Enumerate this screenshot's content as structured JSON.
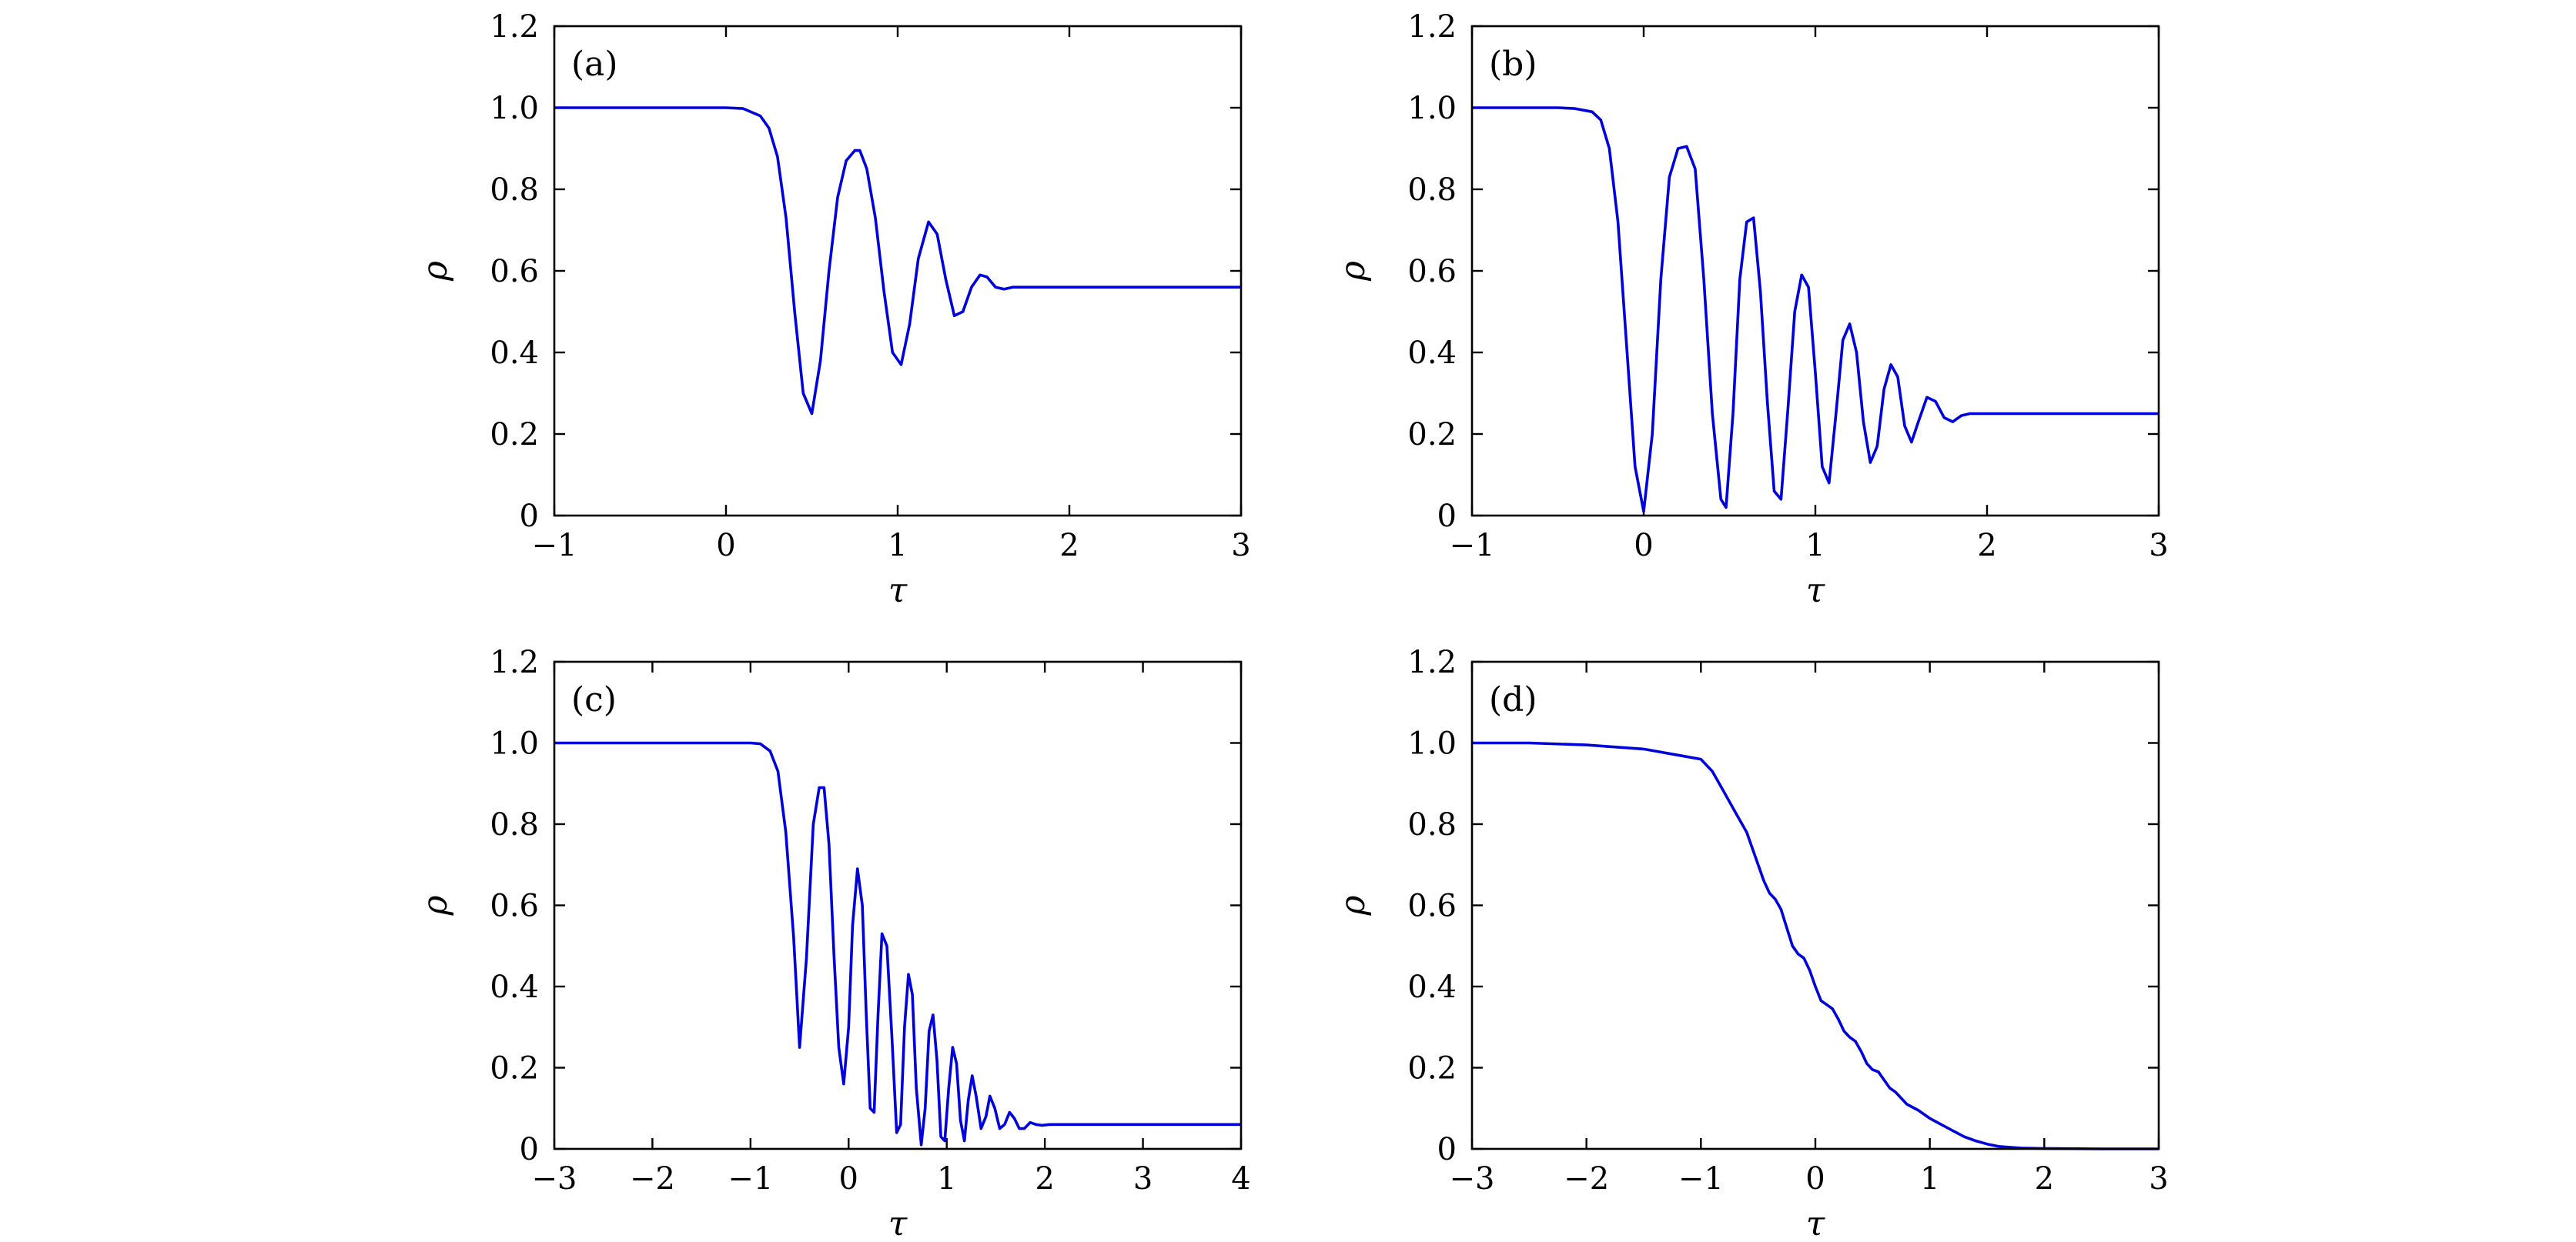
{
  "chart_data": [
    {
      "type": "line",
      "panel_label": "(a)",
      "xlabel": "τ",
      "ylabel": "ρ",
      "xlim": [
        -1,
        3
      ],
      "ylim": [
        0,
        1.2
      ],
      "xticks": [
        -1,
        0,
        1,
        2,
        3
      ],
      "yticks": [
        0,
        0.2,
        0.4,
        0.6,
        0.8,
        1.0,
        1.2
      ],
      "xtick_labels": [
        "−1",
        "0",
        "1",
        "2",
        "3"
      ],
      "ytick_labels": [
        "0",
        "0.2",
        "0.4",
        "0.6",
        "0.8",
        "1.0",
        "1.2"
      ],
      "color": "#0000dd",
      "series": [
        {
          "x": [
            -1.0,
            0.0,
            0.1,
            0.2,
            0.25,
            0.3,
            0.35,
            0.4,
            0.45,
            0.5,
            0.55,
            0.6,
            0.65,
            0.7,
            0.75,
            0.78,
            0.82,
            0.87,
            0.92,
            0.97,
            1.02,
            1.07,
            1.12,
            1.18,
            1.23,
            1.28,
            1.33,
            1.38,
            1.43,
            1.48,
            1.52,
            1.57,
            1.62,
            1.67,
            1.72,
            2.0,
            3.0
          ],
          "y": [
            1.0,
            1.0,
            0.998,
            0.98,
            0.95,
            0.88,
            0.73,
            0.5,
            0.3,
            0.25,
            0.38,
            0.6,
            0.78,
            0.87,
            0.895,
            0.895,
            0.85,
            0.73,
            0.55,
            0.4,
            0.37,
            0.47,
            0.63,
            0.72,
            0.69,
            0.58,
            0.49,
            0.5,
            0.56,
            0.59,
            0.585,
            0.56,
            0.555,
            0.56,
            0.56,
            0.56,
            0.56
          ]
        }
      ]
    },
    {
      "type": "line",
      "panel_label": "(b)",
      "xlabel": "τ",
      "ylabel": "ρ",
      "xlim": [
        -1,
        3
      ],
      "ylim": [
        0,
        1.2
      ],
      "xticks": [
        -1,
        0,
        1,
        2,
        3
      ],
      "yticks": [
        0,
        0.2,
        0.4,
        0.6,
        0.8,
        1.0,
        1.2
      ],
      "xtick_labels": [
        "−1",
        "0",
        "1",
        "2",
        "3"
      ],
      "ytick_labels": [
        "0",
        "0.2",
        "0.4",
        "0.6",
        "0.8",
        "1.0",
        "1.2"
      ],
      "color": "#0000dd",
      "series": [
        {
          "x": [
            -1.0,
            -0.5,
            -0.4,
            -0.3,
            -0.25,
            -0.2,
            -0.15,
            -0.1,
            -0.05,
            0.0,
            0.05,
            0.1,
            0.15,
            0.2,
            0.25,
            0.3,
            0.35,
            0.4,
            0.45,
            0.48,
            0.52,
            0.56,
            0.6,
            0.64,
            0.68,
            0.72,
            0.76,
            0.8,
            0.84,
            0.88,
            0.92,
            0.96,
            1.0,
            1.04,
            1.08,
            1.12,
            1.16,
            1.2,
            1.24,
            1.28,
            1.32,
            1.36,
            1.4,
            1.44,
            1.48,
            1.52,
            1.56,
            1.6,
            1.65,
            1.7,
            1.75,
            1.8,
            1.85,
            1.9,
            2.0,
            3.0
          ],
          "y": [
            1.0,
            1.0,
            0.998,
            0.99,
            0.97,
            0.9,
            0.72,
            0.42,
            0.12,
            0.01,
            0.2,
            0.58,
            0.83,
            0.9,
            0.905,
            0.85,
            0.58,
            0.25,
            0.04,
            0.02,
            0.25,
            0.58,
            0.72,
            0.73,
            0.55,
            0.28,
            0.06,
            0.04,
            0.26,
            0.5,
            0.59,
            0.56,
            0.35,
            0.12,
            0.08,
            0.25,
            0.43,
            0.47,
            0.4,
            0.23,
            0.13,
            0.17,
            0.31,
            0.37,
            0.34,
            0.22,
            0.18,
            0.23,
            0.29,
            0.28,
            0.24,
            0.23,
            0.245,
            0.25,
            0.25,
            0.25
          ]
        }
      ]
    },
    {
      "type": "line",
      "panel_label": "(c)",
      "xlabel": "τ",
      "ylabel": "ρ",
      "xlim": [
        -3,
        4
      ],
      "ylim": [
        0,
        1.2
      ],
      "xticks": [
        -3,
        -2,
        -1,
        0,
        1,
        2,
        3,
        4
      ],
      "yticks": [
        0,
        0.2,
        0.4,
        0.6,
        0.8,
        1.0,
        1.2
      ],
      "xtick_labels": [
        "−3",
        "−2",
        "−1",
        "0",
        "1",
        "2",
        "3",
        "4"
      ],
      "ytick_labels": [
        "0",
        "0.2",
        "0.4",
        "0.6",
        "0.8",
        "1.0",
        "1.2"
      ],
      "color": "#0000dd",
      "series": [
        {
          "x": [
            -3.0,
            -1.0,
            -0.9,
            -0.8,
            -0.72,
            -0.64,
            -0.56,
            -0.5,
            -0.43,
            -0.36,
            -0.3,
            -0.25,
            -0.2,
            -0.15,
            -0.1,
            -0.05,
            0.0,
            0.04,
            0.09,
            0.14,
            0.18,
            0.22,
            0.26,
            0.3,
            0.34,
            0.39,
            0.44,
            0.49,
            0.53,
            0.57,
            0.61,
            0.65,
            0.69,
            0.74,
            0.78,
            0.82,
            0.86,
            0.9,
            0.94,
            0.98,
            1.02,
            1.06,
            1.1,
            1.14,
            1.18,
            1.22,
            1.26,
            1.3,
            1.35,
            1.4,
            1.44,
            1.49,
            1.54,
            1.59,
            1.64,
            1.69,
            1.74,
            1.79,
            1.85,
            1.91,
            1.97,
            2.05,
            4.0
          ],
          "y": [
            1.0,
            1.0,
            0.998,
            0.98,
            0.93,
            0.78,
            0.52,
            0.25,
            0.47,
            0.8,
            0.89,
            0.89,
            0.75,
            0.48,
            0.25,
            0.16,
            0.3,
            0.55,
            0.69,
            0.6,
            0.33,
            0.1,
            0.09,
            0.33,
            0.53,
            0.5,
            0.28,
            0.04,
            0.06,
            0.3,
            0.43,
            0.38,
            0.15,
            0.01,
            0.1,
            0.29,
            0.33,
            0.22,
            0.03,
            0.02,
            0.15,
            0.25,
            0.21,
            0.07,
            0.02,
            0.12,
            0.18,
            0.13,
            0.05,
            0.08,
            0.13,
            0.1,
            0.05,
            0.06,
            0.09,
            0.075,
            0.05,
            0.05,
            0.065,
            0.06,
            0.058,
            0.06,
            0.06
          ]
        }
      ]
    },
    {
      "type": "line",
      "panel_label": "(d)",
      "xlabel": "τ",
      "ylabel": "ρ",
      "xlim": [
        -3,
        3
      ],
      "ylim": [
        0,
        1.2
      ],
      "xticks": [
        -3,
        -2,
        -1,
        0,
        1,
        2,
        3
      ],
      "yticks": [
        0,
        0.2,
        0.4,
        0.6,
        0.8,
        1.0,
        1.2
      ],
      "xtick_labels": [
        "−3",
        "−2",
        "−1",
        "0",
        "1",
        "2",
        "3"
      ],
      "ytick_labels": [
        "0",
        "0.2",
        "0.4",
        "0.6",
        "0.8",
        "1.0",
        "1.2"
      ],
      "color": "#0000dd",
      "series": [
        {
          "x": [
            -3.0,
            -2.5,
            -2.0,
            -1.5,
            -1.2,
            -1.0,
            -0.9,
            -0.8,
            -0.7,
            -0.6,
            -0.5,
            -0.45,
            -0.4,
            -0.35,
            -0.3,
            -0.25,
            -0.2,
            -0.15,
            -0.1,
            -0.05,
            0.0,
            0.05,
            0.1,
            0.15,
            0.2,
            0.25,
            0.3,
            0.35,
            0.4,
            0.45,
            0.5,
            0.55,
            0.6,
            0.65,
            0.7,
            0.8,
            0.9,
            1.0,
            1.1,
            1.2,
            1.3,
            1.4,
            1.5,
            1.6,
            1.7,
            1.8,
            2.0,
            2.5,
            3.0
          ],
          "y": [
            1.0,
            1.0,
            0.995,
            0.985,
            0.97,
            0.96,
            0.93,
            0.88,
            0.83,
            0.78,
            0.7,
            0.66,
            0.63,
            0.615,
            0.59,
            0.545,
            0.5,
            0.48,
            0.47,
            0.44,
            0.4,
            0.365,
            0.355,
            0.345,
            0.32,
            0.29,
            0.275,
            0.265,
            0.24,
            0.21,
            0.195,
            0.19,
            0.17,
            0.15,
            0.14,
            0.11,
            0.095,
            0.075,
            0.06,
            0.045,
            0.03,
            0.02,
            0.012,
            0.006,
            0.004,
            0.002,
            0.001,
            0.0,
            0.0
          ]
        }
      ]
    }
  ]
}
